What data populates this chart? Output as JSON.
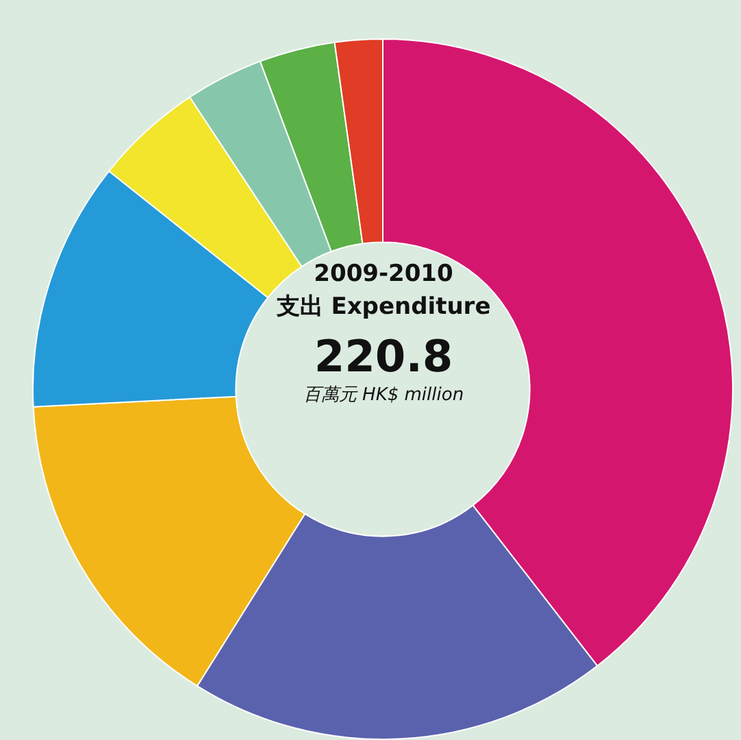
{
  "chart_data": {
    "type": "donut",
    "title": "2009-2010",
    "subtitle": "支出 Expenditure",
    "annotations": [
      "220.8",
      "百萬元 HK$ million"
    ],
    "categories": [
      null,
      null,
      null,
      null,
      null,
      null,
      null,
      null
    ],
    "values": [
      39.5,
      19.4,
      15.3,
      11.5,
      5,
      3.6,
      3.5,
      2.2
    ],
    "colors": [
      "#d5166e",
      "#5b62ad",
      "#f2b619",
      "#259ad8",
      "#f2e52c",
      "#86c7ab",
      "#5bb046",
      "#e03c26"
    ],
    "legend": false
  }
}
